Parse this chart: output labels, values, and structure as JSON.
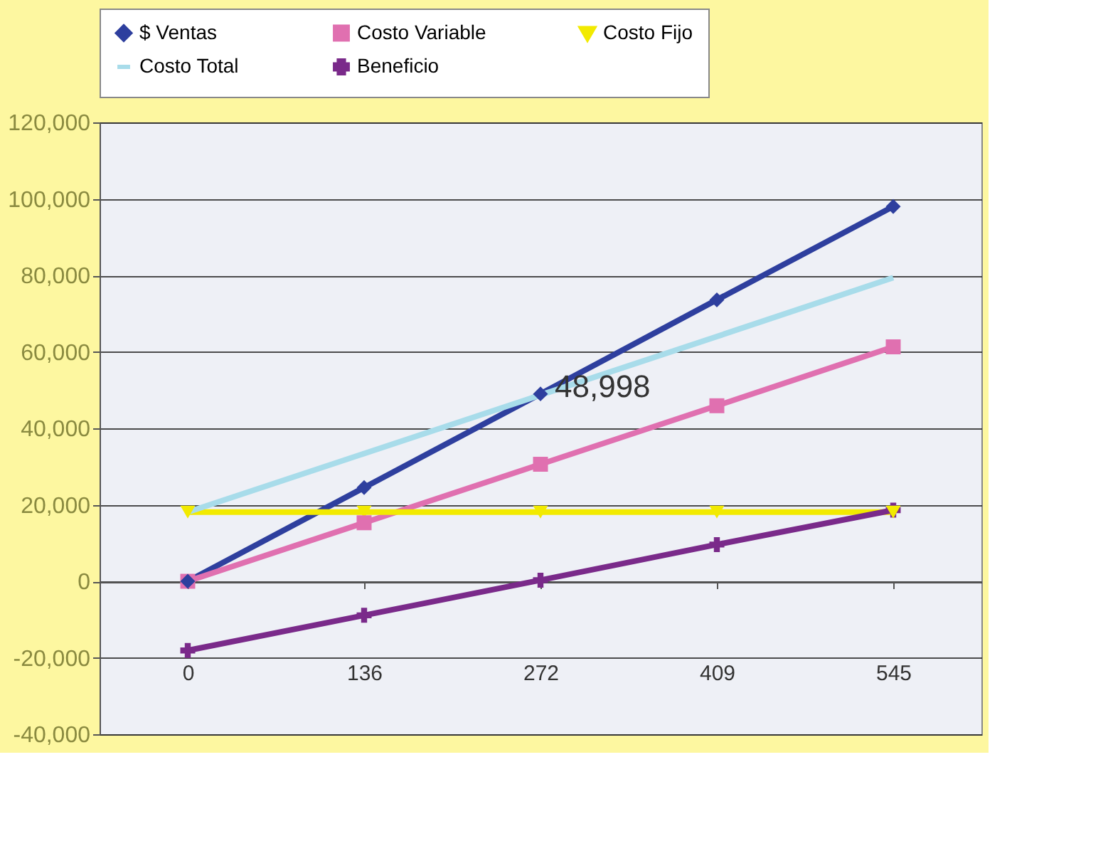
{
  "chart_data": {
    "type": "line",
    "categories": [
      "0",
      "136",
      "272",
      "409",
      "545"
    ],
    "series": [
      {
        "name": "$ Ventas",
        "color": "#2e3f9e",
        "marker": "diamond",
        "values": [
          0,
          24500,
          49000,
          73600,
          98000
        ]
      },
      {
        "name": "Costo Variable",
        "color": "#e070b0",
        "marker": "square",
        "values": [
          0,
          15300,
          30600,
          45900,
          61300
        ]
      },
      {
        "name": "Costo Fijo",
        "color": "#f2ea00",
        "marker": "triangle",
        "values": [
          18100,
          18100,
          18100,
          18100,
          18100
        ]
      },
      {
        "name": "Costo Total",
        "color": "#a8dcea",
        "marker": "none",
        "values": [
          18100,
          33400,
          48700,
          64000,
          79400
        ]
      },
      {
        "name": "Beneficio",
        "color": "#7a2a8a",
        "marker": "cross",
        "values": [
          -18100,
          -8900,
          300,
          9600,
          18600
        ]
      }
    ],
    "ylim": [
      -40000,
      120000
    ],
    "yticks": [
      {
        "value": -40000,
        "label": "-40,000"
      },
      {
        "value": -20000,
        "label": "-20,000"
      },
      0,
      {
        "value": 20000,
        "label": "20,000"
      },
      {
        "value": 40000,
        "label": "40,000"
      },
      {
        "value": 60000,
        "label": "60,000"
      },
      {
        "value": 80000,
        "label": "80,000"
      },
      {
        "value": 100000,
        "label": "100,000"
      },
      {
        "value": 120000,
        "label": "120,000"
      }
    ],
    "annotations": [
      {
        "text": "48,998",
        "x": "272",
        "y": 48998
      }
    ],
    "grid": "y",
    "legend": "top",
    "line_style": "solid"
  }
}
